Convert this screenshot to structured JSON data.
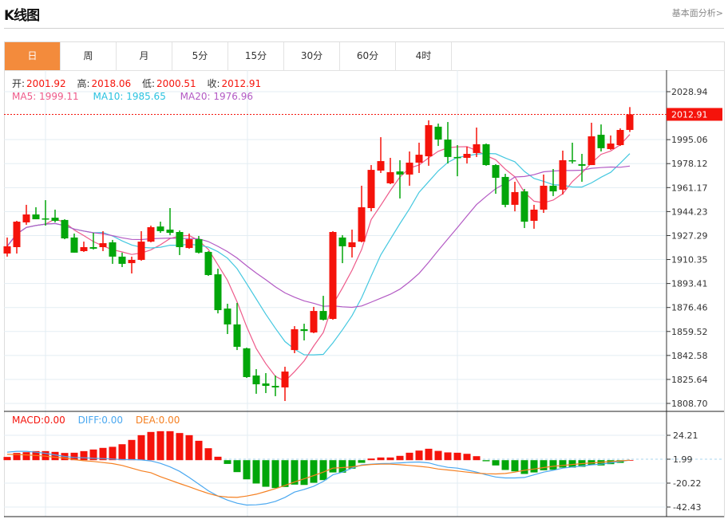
{
  "header": {
    "title": "K线图",
    "link": "基本面分析>"
  },
  "tabs": [
    {
      "label": "日",
      "active": true
    },
    {
      "label": "周"
    },
    {
      "label": "月"
    },
    {
      "label": "5分"
    },
    {
      "label": "15分"
    },
    {
      "label": "30分"
    },
    {
      "label": "60分"
    },
    {
      "label": "4时"
    }
  ],
  "ohlc_info": {
    "open_label": "开:",
    "open": "2001.92",
    "high_label": "高:",
    "high": "2018.06",
    "low_label": "低:",
    "low": "2000.51",
    "close_label": "收:",
    "close": "2012.91"
  },
  "ma_info": {
    "ma5": "MA5: 1999.11",
    "ma10": "MA10: 1985.65",
    "ma20": "MA20: 1976.96"
  },
  "macd_info": {
    "macd": "MACD:0.00",
    "diff": "DIFF:0.00",
    "dea": "DEA:0.00"
  },
  "colors": {
    "up": "#f5130b",
    "down": "#02a60a",
    "ma5": "#ee5a8a",
    "ma10": "#45c8e0",
    "ma20": "#b35ac4",
    "diff": "#4aa8f0",
    "dea": "#f58022",
    "accent": "#f38b3c"
  },
  "chart_data": [
    {
      "type": "candlestick",
      "title": "K线图",
      "current_price": "2012.91",
      "y_ticks": [
        "2028.94",
        "1995.06",
        "1978.12",
        "1961.17",
        "1944.23",
        "1927.29",
        "1910.35",
        "1893.41",
        "1876.46",
        "1859.52",
        "1842.58",
        "1825.64",
        "1808.70"
      ],
      "ylim": [
        1808.7,
        2028.94
      ],
      "series": {
        "name": "OHLC",
        "fields": [
          "open",
          "high",
          "low",
          "close"
        ],
        "values": [
          [
            1914.6,
            1925.9,
            1912.4,
            1919.7
          ],
          [
            1919.1,
            1937.7,
            1914.6,
            1937.1
          ],
          [
            1936.6,
            1949.0,
            1934.9,
            1942.2
          ],
          [
            1942.2,
            1947.3,
            1938.8,
            1938.8
          ],
          [
            1939.4,
            1952.3,
            1934.3,
            1939.1
          ],
          [
            1939.9,
            1945.6,
            1936.6,
            1937.7
          ],
          [
            1938.3,
            1938.8,
            1924.7,
            1925.3
          ],
          [
            1925.9,
            1928.7,
            1915.2,
            1915.2
          ],
          [
            1916.3,
            1923.0,
            1915.7,
            1919.1
          ],
          [
            1919.1,
            1929.2,
            1917.4,
            1918.0
          ],
          [
            1919.1,
            1930.4,
            1916.3,
            1921.9
          ],
          [
            1922.5,
            1924.2,
            1907.3,
            1912.4
          ],
          [
            1912.4,
            1915.2,
            1905.0,
            1907.3
          ],
          [
            1907.8,
            1912.4,
            1900.5,
            1910.1
          ],
          [
            1910.1,
            1930.4,
            1909.5,
            1923.0
          ],
          [
            1923.0,
            1934.3,
            1922.5,
            1933.2
          ],
          [
            1933.7,
            1937.1,
            1929.2,
            1930.4
          ],
          [
            1931.5,
            1946.7,
            1927.6,
            1929.2
          ],
          [
            1929.8,
            1930.9,
            1913.5,
            1919.1
          ],
          [
            1918.5,
            1928.7,
            1918.0,
            1924.7
          ],
          [
            1924.7,
            1927.0,
            1914.6,
            1915.2
          ],
          [
            1915.7,
            1916.3,
            1898.8,
            1899.4
          ],
          [
            1899.9,
            1903.9,
            1872.3,
            1874.6
          ],
          [
            1875.7,
            1879.1,
            1857.7,
            1864.5
          ],
          [
            1864.5,
            1879.7,
            1846.4,
            1848.7
          ],
          [
            1847.6,
            1848.1,
            1826.7,
            1827.3
          ],
          [
            1828.4,
            1832.9,
            1815.5,
            1822.2
          ],
          [
            1822.8,
            1830.1,
            1816.0,
            1821.1
          ],
          [
            1821.1,
            1828.4,
            1813.8,
            1820.0
          ],
          [
            1820.0,
            1834.6,
            1810.4,
            1831.2
          ],
          [
            1846.4,
            1863.3,
            1844.2,
            1861.1
          ],
          [
            1861.1,
            1865.0,
            1853.2,
            1859.9
          ],
          [
            1858.8,
            1876.9,
            1858.3,
            1874.0
          ],
          [
            1874.0,
            1884.7,
            1867.3,
            1867.8
          ],
          [
            1868.4,
            1930.4,
            1867.8,
            1929.8
          ],
          [
            1925.9,
            1927.6,
            1907.8,
            1919.7
          ],
          [
            1919.1,
            1931.5,
            1911.8,
            1922.5
          ],
          [
            1923.0,
            1962.5,
            1922.5,
            1947.3
          ],
          [
            1946.7,
            1977.1,
            1944.4,
            1973.7
          ],
          [
            1973.2,
            1996.8,
            1971.5,
            1979.9
          ],
          [
            1964.2,
            1982.2,
            1963.6,
            1972.1
          ],
          [
            1972.6,
            1980.5,
            1953.5,
            1970.4
          ],
          [
            1970.4,
            1986.7,
            1962.5,
            1978.8
          ],
          [
            1978.8,
            1992.9,
            1971.5,
            1984.4
          ],
          [
            1983.3,
            2008.7,
            1976.6,
            2005.3
          ],
          [
            2004.2,
            2006.4,
            1990.6,
            1995.1
          ],
          [
            1995.1,
            2007.5,
            1978.2,
            1982.8
          ],
          [
            1982.8,
            1991.2,
            1969.2,
            1982.2
          ],
          [
            1982.2,
            1990.1,
            1978.2,
            1985.0
          ],
          [
            1985.6,
            2003.6,
            1982.8,
            1991.8
          ],
          [
            1991.8,
            1992.3,
            1976.6,
            1977.1
          ],
          [
            1977.1,
            1977.7,
            1956.8,
            1968.1
          ],
          [
            1968.7,
            1970.9,
            1947.3,
            1949.0
          ],
          [
            1949.0,
            1965.3,
            1944.4,
            1958.0
          ],
          [
            1958.5,
            1960.2,
            1932.6,
            1937.1
          ],
          [
            1937.7,
            1949.0,
            1932.1,
            1945.6
          ],
          [
            1945.6,
            1970.4,
            1943.3,
            1962.5
          ],
          [
            1962.5,
            1974.3,
            1955.2,
            1958.5
          ],
          [
            1959.7,
            1987.3,
            1956.3,
            1980.5
          ],
          [
            1980.5,
            1992.9,
            1978.2,
            1979.9
          ],
          [
            1977.7,
            1985.0,
            1965.3,
            1976.6
          ],
          [
            1977.1,
            2007.0,
            1977.1,
            1997.4
          ],
          [
            1998.5,
            2005.8,
            1986.7,
            1989.0
          ],
          [
            1988.4,
            1998.0,
            1987.8,
            1992.3
          ],
          [
            1991.2,
            2003.0,
            1990.6,
            2001.9
          ],
          [
            2001.92,
            2018.06,
            2000.51,
            2012.91
          ]
        ]
      },
      "moving_averages": [
        "MA5",
        "MA10",
        "MA20"
      ]
    },
    {
      "type": "bar",
      "title": "MACD",
      "y_ticks": [
        "24.21",
        "1.99",
        "-20.22",
        "-42.43"
      ],
      "ylim": [
        -46,
        30
      ],
      "series": [
        {
          "name": "MACD",
          "values": [
            3.0,
            6.7,
            7.4,
            8.4,
            8.4,
            7.7,
            6.7,
            6.9,
            8.4,
            9.9,
            11.4,
            12.4,
            14.8,
            18.8,
            23.2,
            26.2,
            26.9,
            26.9,
            25.2,
            23.2,
            18.0,
            11.1,
            3.2,
            -3.5,
            -11.1,
            -17.8,
            -21.7,
            -24.7,
            -25.9,
            -24.9,
            -22.7,
            -23.0,
            -21.0,
            -18.5,
            -11.4,
            -11.6,
            -7.9,
            -2.5,
            1.5,
            2.5,
            2.5,
            4.0,
            6.9,
            8.9,
            10.6,
            8.6,
            7.2,
            6.9,
            5.9,
            3.7,
            -1.0,
            -4.9,
            -9.1,
            -10.4,
            -12.8,
            -11.4,
            -9.4,
            -8.9,
            -6.9,
            -6.9,
            -6.2,
            -4.4,
            -4.9,
            -3.7,
            -2.5,
            0
          ]
        },
        {
          "name": "DIFF",
          "values": [
            7.4,
            8.2,
            8.2,
            7.4,
            6.4,
            4.9,
            3.5,
            2.5,
            2.2,
            1.7,
            1.5,
            1.0,
            0.5,
            0.5,
            0.2,
            -0.7,
            -3.0,
            -6.2,
            -10.4,
            -16.1,
            -22.2,
            -28.4,
            -33.3,
            -37.1,
            -40.0,
            -41.7,
            -41.5,
            -40.5,
            -38.3,
            -34.6,
            -29.6,
            -27.2,
            -24.2,
            -19.8,
            -13.6,
            -11.1,
            -7.4,
            -4.4,
            -3.7,
            -3.2,
            -3.0,
            -2.5,
            -2.0,
            -1.7,
            -2.5,
            -4.9,
            -6.7,
            -7.4,
            -9.1,
            -11.1,
            -13.6,
            -15.6,
            -16.5,
            -16.5,
            -16.1,
            -13.6,
            -11.1,
            -9.4,
            -7.4,
            -6.4,
            -5.4,
            -4.4,
            -3.7,
            -2.5,
            -1.2,
            0
          ]
        },
        {
          "name": "DEA",
          "values": [
            5.4,
            5.2,
            4.9,
            4.4,
            3.7,
            2.7,
            2.0,
            0.5,
            -0.5,
            -1.2,
            -2.2,
            -3.2,
            -4.9,
            -7.4,
            -9.9,
            -11.6,
            -15.3,
            -18.5,
            -21.7,
            -24.7,
            -27.9,
            -30.9,
            -33.3,
            -34.3,
            -34.6,
            -33.3,
            -31.6,
            -29.1,
            -26.4,
            -23.5,
            -20.3,
            -17.3,
            -14.3,
            -11.1,
            -7.4,
            -6.9,
            -6.2,
            -4.9,
            -4.0,
            -3.7,
            -3.7,
            -4.2,
            -4.9,
            -5.7,
            -6.7,
            -8.2,
            -9.1,
            -10.1,
            -11.1,
            -12.1,
            -12.6,
            -12.8,
            -12.4,
            -11.1,
            -9.4,
            -8.2,
            -6.9,
            -5.7,
            -4.9,
            -4.0,
            -3.2,
            -2.5,
            -2.0,
            -1.2,
            -0.7,
            0
          ]
        }
      ]
    }
  ]
}
